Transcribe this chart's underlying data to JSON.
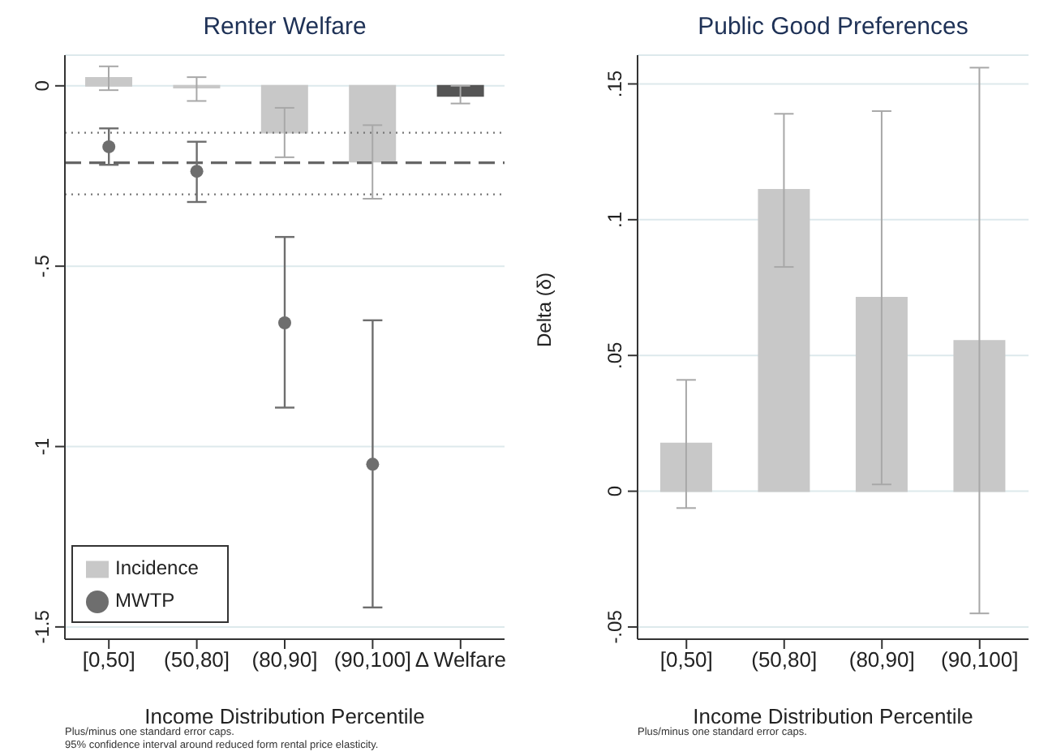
{
  "chart_data": [
    {
      "type": "bar",
      "title": "Renter Welfare",
      "xlabel": "Income Distribution Percentile",
      "categories": [
        "[0,50]",
        "(50,80]",
        "(80,90]",
        "(90,100]",
        "Δ Welfare"
      ],
      "series": [
        {
          "name": "Incidence",
          "colors": [
            "#c8c8c8",
            "#c8c8c8",
            "#c8c8c8",
            "#c8c8c8",
            "#555555"
          ],
          "values": [
            0.022,
            -0.005,
            -0.13,
            -0.21,
            -0.028
          ],
          "errors": [
            [
              -0.012,
              0.054
            ],
            [
              -0.042,
              0.024
            ],
            [
              -0.198,
              -0.061
            ],
            [
              -0.313,
              -0.109
            ],
            [
              -0.049,
              0
            ]
          ]
        },
        {
          "name": "MWTP",
          "type": "scatter",
          "color": "#6e6e6e",
          "values": [
            -0.169,
            -0.237,
            -0.657,
            -1.049,
            null
          ],
          "errors": [
            [
              -0.219,
              -0.118
            ],
            [
              -0.322,
              -0.155
            ],
            [
              -0.892,
              -0.419
            ],
            [
              -1.446,
              -0.65
            ],
            null
          ]
        }
      ],
      "ylim": [
        -1.534,
        0.085
      ],
      "yticks": [
        {
          "value": -1.5,
          "label": "-1.5"
        },
        {
          "value": -1,
          "label": "-1"
        },
        {
          "value": -0.5,
          "label": "-.5"
        },
        {
          "value": 0,
          "label": "0"
        }
      ],
      "ref_lines": [
        {
          "axis": "y",
          "value": -0.213,
          "color": "#666666",
          "line_style": "dashed"
        },
        {
          "axis": "y",
          "value": -0.13,
          "color": "#777777",
          "line_style": "dotted"
        },
        {
          "axis": "y",
          "value": -0.301,
          "color": "#777777",
          "line_style": "dotted"
        }
      ],
      "grid": "y",
      "legend": "bottom left",
      "marker": "circle",
      "annotations": [
        "Plus/minus one standard error caps.",
        "95% confidence interval around reduced form rental price elasticity."
      ]
    },
    {
      "type": "bar",
      "title": "Public Good Preferences",
      "xlabel": "Income Distribution Percentile",
      "ylabel": "Delta (δ)",
      "categories": [
        "[0,50]",
        "(50,80]",
        "(80,90]",
        "(90,100]"
      ],
      "series": [
        {
          "color": "#c8c8c8",
          "values": [
            0.0176,
            0.111,
            0.0713,
            0.0554
          ],
          "errors": [
            [
              -0.0062,
              0.041
            ],
            [
              0.0826,
              0.139
            ],
            [
              0.0025,
              0.14
            ],
            [
              -0.045,
              0.156
            ]
          ]
        }
      ],
      "ylim": [
        -0.0545,
        0.1606
      ],
      "yticks": [
        {
          "value": -0.05,
          "label": "-.05"
        },
        {
          "value": 0,
          "label": "0"
        },
        {
          "value": 0.05,
          "label": ".05"
        },
        {
          "value": 0.1,
          "label": ".1"
        },
        {
          "value": 0.15,
          "label": ".15"
        }
      ],
      "grid": "y",
      "legend": false,
      "annotations": [
        "Plus/minus one standard error caps."
      ]
    }
  ]
}
